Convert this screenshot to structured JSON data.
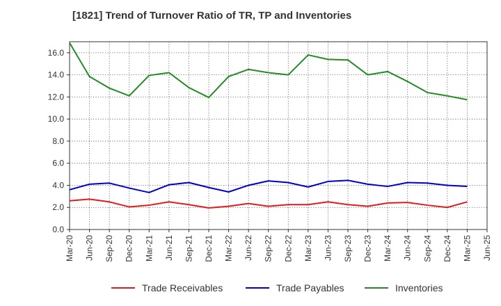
{
  "chart_data": {
    "type": "line",
    "title": "[1821]  Trend of Turnover Ratio of TR, TP and Inventories",
    "xlabel": "",
    "ylabel": "",
    "x_ticks": [
      "Mar-20",
      "Jun-20",
      "Sep-20",
      "Dec-20",
      "Mar-21",
      "Jun-21",
      "Sep-21",
      "Dec-21",
      "Mar-22",
      "Jun-22",
      "Sep-22",
      "Dec-22",
      "Mar-23",
      "Jun-23",
      "Sep-23",
      "Dec-23",
      "Mar-24",
      "Jun-24",
      "Sep-24",
      "Dec-24",
      "Mar-25",
      "Jun-25"
    ],
    "x": [
      "Mar-20",
      "Jun-20",
      "Sep-20",
      "Dec-20",
      "Mar-21",
      "Jun-21",
      "Sep-21",
      "Dec-21",
      "Mar-22",
      "Jun-22",
      "Sep-22",
      "Dec-22",
      "Mar-23",
      "Jun-23",
      "Sep-23",
      "Dec-23",
      "Mar-24",
      "Jun-24",
      "Sep-24",
      "Dec-24",
      "Mar-25"
    ],
    "ylim": [
      0,
      17
    ],
    "y_ticks": [
      "0.0",
      "2.0",
      "4.0",
      "6.0",
      "8.0",
      "10.0",
      "12.0",
      "14.0",
      "16.0"
    ],
    "y_tick_values": [
      0,
      2,
      4,
      6,
      8,
      10,
      12,
      14,
      16
    ],
    "grid": true,
    "legend_position": "bottom",
    "series": [
      {
        "name": "Trade Receivables",
        "color": "#e31a1c",
        "values": [
          2.6,
          2.75,
          2.5,
          2.05,
          2.2,
          2.5,
          2.25,
          1.95,
          2.1,
          2.35,
          2.1,
          2.25,
          2.25,
          2.5,
          2.25,
          2.1,
          2.4,
          2.45,
          2.2,
          2.0,
          2.5
        ]
      },
      {
        "name": "Trade Payables",
        "color": "#0000cc",
        "values": [
          3.6,
          4.1,
          4.2,
          3.75,
          3.35,
          4.05,
          4.25,
          3.8,
          3.4,
          4.0,
          4.4,
          4.25,
          3.85,
          4.35,
          4.45,
          4.1,
          3.9,
          4.25,
          4.2,
          4.0,
          3.9
        ]
      },
      {
        "name": "Inventories",
        "color": "#228b22",
        "values": [
          16.9,
          13.85,
          12.8,
          12.1,
          13.95,
          14.2,
          12.85,
          11.95,
          13.85,
          14.5,
          14.2,
          14.0,
          15.8,
          15.4,
          15.35,
          14.0,
          14.3,
          13.4,
          12.4,
          12.1,
          11.75
        ]
      }
    ]
  }
}
